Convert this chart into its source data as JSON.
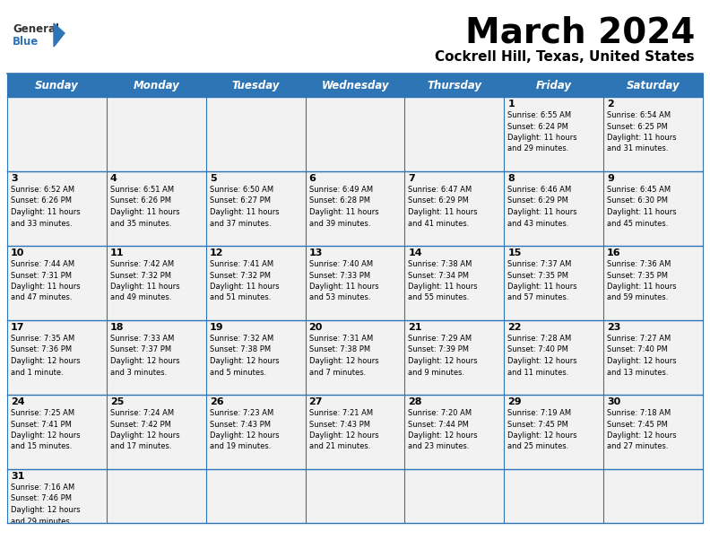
{
  "title": "March 2024",
  "subtitle": "Cockrell Hill, Texas, United States",
  "days_of_week": [
    "Sunday",
    "Monday",
    "Tuesday",
    "Wednesday",
    "Thursday",
    "Friday",
    "Saturday"
  ],
  "header_bg": "#2E75B6",
  "header_text": "#FFFFFF",
  "border_color": "#2E75B6",
  "text_color": "#000000",
  "cell_bg": "#F0F0F0",
  "calendar_data": [
    [
      null,
      null,
      null,
      null,
      null,
      {
        "day": 1,
        "sunrise": "6:55 AM",
        "sunset": "6:24 PM",
        "daylight": "11 hours and 29 minutes."
      },
      {
        "day": 2,
        "sunrise": "6:54 AM",
        "sunset": "6:25 PM",
        "daylight": "11 hours and 31 minutes."
      }
    ],
    [
      {
        "day": 3,
        "sunrise": "6:52 AM",
        "sunset": "6:26 PM",
        "daylight": "11 hours and 33 minutes."
      },
      {
        "day": 4,
        "sunrise": "6:51 AM",
        "sunset": "6:26 PM",
        "daylight": "11 hours and 35 minutes."
      },
      {
        "day": 5,
        "sunrise": "6:50 AM",
        "sunset": "6:27 PM",
        "daylight": "11 hours and 37 minutes."
      },
      {
        "day": 6,
        "sunrise": "6:49 AM",
        "sunset": "6:28 PM",
        "daylight": "11 hours and 39 minutes."
      },
      {
        "day": 7,
        "sunrise": "6:47 AM",
        "sunset": "6:29 PM",
        "daylight": "11 hours and 41 minutes."
      },
      {
        "day": 8,
        "sunrise": "6:46 AM",
        "sunset": "6:29 PM",
        "daylight": "11 hours and 43 minutes."
      },
      {
        "day": 9,
        "sunrise": "6:45 AM",
        "sunset": "6:30 PM",
        "daylight": "11 hours and 45 minutes."
      }
    ],
    [
      {
        "day": 10,
        "sunrise": "7:44 AM",
        "sunset": "7:31 PM",
        "daylight": "11 hours and 47 minutes."
      },
      {
        "day": 11,
        "sunrise": "7:42 AM",
        "sunset": "7:32 PM",
        "daylight": "11 hours and 49 minutes."
      },
      {
        "day": 12,
        "sunrise": "7:41 AM",
        "sunset": "7:32 PM",
        "daylight": "11 hours and 51 minutes."
      },
      {
        "day": 13,
        "sunrise": "7:40 AM",
        "sunset": "7:33 PM",
        "daylight": "11 hours and 53 minutes."
      },
      {
        "day": 14,
        "sunrise": "7:38 AM",
        "sunset": "7:34 PM",
        "daylight": "11 hours and 55 minutes."
      },
      {
        "day": 15,
        "sunrise": "7:37 AM",
        "sunset": "7:35 PM",
        "daylight": "11 hours and 57 minutes."
      },
      {
        "day": 16,
        "sunrise": "7:36 AM",
        "sunset": "7:35 PM",
        "daylight": "11 hours and 59 minutes."
      }
    ],
    [
      {
        "day": 17,
        "sunrise": "7:35 AM",
        "sunset": "7:36 PM",
        "daylight": "12 hours and 1 minute."
      },
      {
        "day": 18,
        "sunrise": "7:33 AM",
        "sunset": "7:37 PM",
        "daylight": "12 hours and 3 minutes."
      },
      {
        "day": 19,
        "sunrise": "7:32 AM",
        "sunset": "7:38 PM",
        "daylight": "12 hours and 5 minutes."
      },
      {
        "day": 20,
        "sunrise": "7:31 AM",
        "sunset": "7:38 PM",
        "daylight": "12 hours and 7 minutes."
      },
      {
        "day": 21,
        "sunrise": "7:29 AM",
        "sunset": "7:39 PM",
        "daylight": "12 hours and 9 minutes."
      },
      {
        "day": 22,
        "sunrise": "7:28 AM",
        "sunset": "7:40 PM",
        "daylight": "12 hours and 11 minutes."
      },
      {
        "day": 23,
        "sunrise": "7:27 AM",
        "sunset": "7:40 PM",
        "daylight": "12 hours and 13 minutes."
      }
    ],
    [
      {
        "day": 24,
        "sunrise": "7:25 AM",
        "sunset": "7:41 PM",
        "daylight": "12 hours and 15 minutes."
      },
      {
        "day": 25,
        "sunrise": "7:24 AM",
        "sunset": "7:42 PM",
        "daylight": "12 hours and 17 minutes."
      },
      {
        "day": 26,
        "sunrise": "7:23 AM",
        "sunset": "7:43 PM",
        "daylight": "12 hours and 19 minutes."
      },
      {
        "day": 27,
        "sunrise": "7:21 AM",
        "sunset": "7:43 PM",
        "daylight": "12 hours and 21 minutes."
      },
      {
        "day": 28,
        "sunrise": "7:20 AM",
        "sunset": "7:44 PM",
        "daylight": "12 hours and 23 minutes."
      },
      {
        "day": 29,
        "sunrise": "7:19 AM",
        "sunset": "7:45 PM",
        "daylight": "12 hours and 25 minutes."
      },
      {
        "day": 30,
        "sunrise": "7:18 AM",
        "sunset": "7:45 PM",
        "daylight": "12 hours and 27 minutes."
      }
    ],
    [
      {
        "day": 31,
        "sunrise": "7:16 AM",
        "sunset": "7:46 PM",
        "daylight": "12 hours and 29 minutes."
      },
      null,
      null,
      null,
      null,
      null,
      null
    ]
  ],
  "logo_general_color": "#333333",
  "logo_blue_color": "#2E75B6",
  "logo_triangle_color": "#2E75B6"
}
